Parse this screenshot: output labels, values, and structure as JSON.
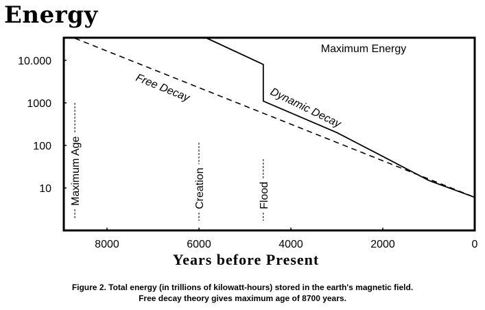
{
  "chart_data": {
    "type": "line",
    "title": "Energy",
    "xlabel": "Years before Present",
    "ylabel": "",
    "x_reversed": true,
    "y_scale": "log",
    "xlim": [
      8940,
      0
    ],
    "ylim": [
      1,
      34000
    ],
    "x_ticks": [
      8000,
      6000,
      4000,
      2000,
      0
    ],
    "x_tick_labels": [
      "8000",
      "6000",
      "4000",
      "2000",
      "0"
    ],
    "y_ticks": [
      10000,
      1000,
      100,
      10
    ],
    "y_tick_labels": [
      "10.000",
      "1000",
      "100",
      "10"
    ],
    "grid": false,
    "series": [
      {
        "name": "Free Decay",
        "style": "dashed",
        "color": "#000000",
        "x": [
          8700,
          0
        ],
        "y": [
          33000,
          6
        ]
      },
      {
        "name": "Dynamic Decay",
        "style": "solid",
        "color": "#000000",
        "x": [
          5850,
          4600,
          4600,
          3000,
          2000,
          1000,
          0
        ],
        "y": [
          34000,
          8000,
          1100,
          200,
          55,
          15,
          6
        ]
      }
    ],
    "annotations": [
      {
        "text": "Maximum Energy",
        "position": "top-right"
      },
      {
        "text": "Maximum Age",
        "x": 8700
      },
      {
        "text": "Creation",
        "x": 6000
      },
      {
        "text": "Flood",
        "x": 4600
      }
    ],
    "caption": [
      "Figure 2. Total energy (in trillions of kilowatt-hours) stored in the earth's magnetic field.",
      "Free decay theory gives maximum age of 8700 years."
    ]
  }
}
